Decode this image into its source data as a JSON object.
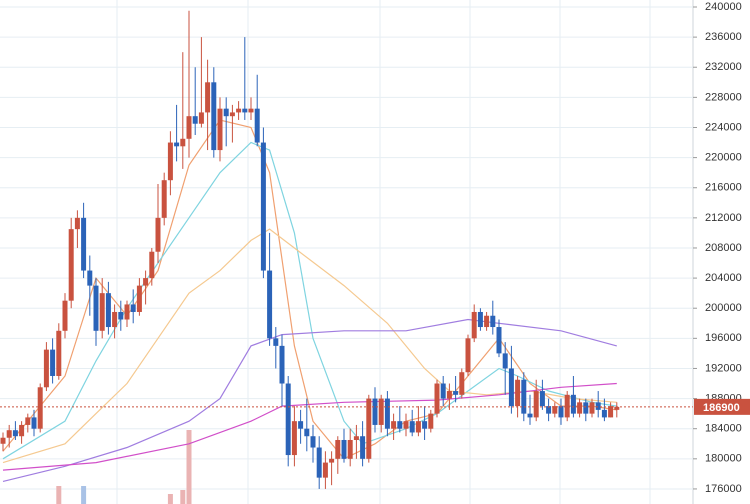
{
  "chart_data": {
    "type": "candlestick",
    "up_color": "#c9523f",
    "down_color": "#2b63b8",
    "ylim": [
      174000,
      240000
    ],
    "yticks": [
      176000,
      180000,
      184000,
      188000,
      192000,
      196000,
      200000,
      204000,
      208000,
      212000,
      216000,
      220000,
      224000,
      228000,
      232000,
      236000,
      240000
    ],
    "grid": true,
    "ohlc": [
      [
        182000,
        183500,
        181000,
        182800
      ],
      [
        182800,
        184500,
        181500,
        183800
      ],
      [
        183800,
        185000,
        182500,
        183000
      ],
      [
        183000,
        185000,
        182000,
        184500
      ],
      [
        184500,
        186000,
        183500,
        185500
      ],
      [
        185500,
        186500,
        183000,
        184000
      ],
      [
        184000,
        190000,
        183500,
        189500
      ],
      [
        189500,
        195500,
        189000,
        194500
      ],
      [
        194500,
        196000,
        190000,
        191000
      ],
      [
        191000,
        198000,
        190500,
        197000
      ],
      [
        197000,
        202000,
        196000,
        201000
      ],
      [
        201000,
        212000,
        200000,
        210500
      ],
      [
        210500,
        213000,
        208000,
        212000
      ],
      [
        212000,
        214000,
        204000,
        205000
      ],
      [
        205000,
        207000,
        199000,
        203000
      ],
      [
        203000,
        204000,
        195000,
        197000
      ],
      [
        197000,
        204000,
        196000,
        202000
      ],
      [
        202000,
        203500,
        196500,
        197500
      ],
      [
        197500,
        200500,
        196000,
        199500
      ],
      [
        199500,
        201000,
        197000,
        198500
      ],
      [
        198500,
        201000,
        197500,
        200500
      ],
      [
        200500,
        202500,
        198000,
        199500
      ],
      [
        199500,
        204000,
        199000,
        203000
      ],
      [
        203000,
        205000,
        200500,
        204000
      ],
      [
        204000,
        208000,
        203000,
        207500
      ],
      [
        207500,
        216500,
        206000,
        212000
      ],
      [
        212000,
        218000,
        211000,
        217000
      ],
      [
        217000,
        223500,
        215000,
        222000
      ],
      [
        222000,
        227000,
        219500,
        221500
      ],
      [
        221500,
        234000,
        218500,
        222500
      ],
      [
        222500,
        239500,
        220000,
        225500
      ],
      [
        225500,
        232000,
        223000,
        224500
      ],
      [
        224500,
        236000,
        224000,
        226000
      ],
      [
        226000,
        233000,
        221000,
        230000
      ],
      [
        230000,
        232000,
        220000,
        221000
      ],
      [
        221000,
        228000,
        219500,
        226500
      ],
      [
        226500,
        228000,
        221500,
        225500
      ],
      [
        225500,
        227000,
        222000,
        226000
      ],
      [
        226000,
        227500,
        225000,
        226500
      ],
      [
        226500,
        236000,
        225000,
        226000
      ],
      [
        226000,
        228000,
        225000,
        226500
      ],
      [
        226500,
        231000,
        221500,
        222000
      ],
      [
        222000,
        224000,
        204000,
        205000
      ],
      [
        205000,
        210000,
        195000,
        196000
      ],
      [
        196000,
        197500,
        192000,
        195000
      ],
      [
        195000,
        196500,
        187000,
        190000
      ],
      [
        190000,
        191000,
        179000,
        180500
      ],
      [
        180500,
        187000,
        179000,
        185000
      ],
      [
        185000,
        186500,
        182000,
        184000
      ],
      [
        184000,
        188000,
        181000,
        183000
      ],
      [
        183000,
        184500,
        179500,
        181500
      ],
      [
        181500,
        183000,
        176000,
        177500
      ],
      [
        177500,
        181000,
        176000,
        179500
      ],
      [
        179500,
        181000,
        176500,
        180000
      ],
      [
        180000,
        183000,
        178000,
        182500
      ],
      [
        182500,
        184000,
        179500,
        180000
      ],
      [
        180000,
        184000,
        179000,
        182500
      ],
      [
        182500,
        184500,
        180000,
        183000
      ],
      [
        183000,
        185000,
        179000,
        180000
      ],
      [
        180000,
        188500,
        179500,
        188000
      ],
      [
        188000,
        189500,
        183500,
        184500
      ],
      [
        184500,
        188500,
        183500,
        188000
      ],
      [
        188000,
        189000,
        183000,
        184000
      ],
      [
        184000,
        186000,
        182500,
        185000
      ],
      [
        185000,
        187000,
        183500,
        184000
      ],
      [
        184000,
        186000,
        183000,
        185000
      ],
      [
        185000,
        186500,
        183000,
        183500
      ],
      [
        183500,
        187000,
        183000,
        185000
      ],
      [
        185000,
        187000,
        182500,
        184000
      ],
      [
        184000,
        186500,
        183500,
        186000
      ],
      [
        186000,
        190500,
        185500,
        190000
      ],
      [
        190000,
        191000,
        187000,
        188000
      ],
      [
        188000,
        190000,
        186500,
        189000
      ],
      [
        189000,
        191000,
        187500,
        188500
      ],
      [
        188500,
        192000,
        188000,
        191500
      ],
      [
        191500,
        196500,
        191000,
        196000
      ],
      [
        196000,
        200500,
        195500,
        199500
      ],
      [
        199500,
        200000,
        197000,
        197500
      ],
      [
        197500,
        199500,
        197000,
        199000
      ],
      [
        199000,
        201000,
        196500,
        197500
      ],
      [
        197500,
        198500,
        193500,
        194000
      ],
      [
        194000,
        195500,
        188500,
        192000
      ],
      [
        192000,
        195000,
        186000,
        187000
      ],
      [
        187000,
        191000,
        185500,
        190500
      ],
      [
        190500,
        191500,
        185000,
        186000
      ],
      [
        186000,
        188500,
        184500,
        185500
      ],
      [
        185500,
        190500,
        185000,
        189000
      ],
      [
        189000,
        190500,
        186500,
        187000
      ],
      [
        187000,
        188000,
        185000,
        186000
      ],
      [
        186000,
        187500,
        185500,
        187000
      ],
      [
        187000,
        188000,
        184500,
        185500
      ],
      [
        185500,
        189000,
        185000,
        188500
      ],
      [
        188500,
        191000,
        185500,
        186000
      ],
      [
        186000,
        188000,
        185500,
        187500
      ],
      [
        187500,
        188000,
        185000,
        186000
      ],
      [
        186000,
        188000,
        185500,
        187500
      ],
      [
        187500,
        189000,
        185500,
        186500
      ],
      [
        186500,
        188000,
        185000,
        185500
      ],
      [
        185500,
        187500,
        185500,
        187000
      ],
      [
        186500,
        187500,
        185500,
        186900
      ]
    ],
    "volume": [
      null,
      null,
      null,
      null,
      null,
      null,
      null,
      null,
      null,
      18,
      null,
      null,
      null,
      18,
      null,
      null,
      null,
      null,
      null,
      null,
      null,
      null,
      null,
      null,
      null,
      null,
      null,
      10,
      null,
      14,
      74,
      null,
      null,
      null,
      null,
      null,
      null,
      null,
      null,
      null,
      null,
      null,
      null,
      null,
      null,
      null,
      null,
      null,
      null,
      null,
      null,
      null,
      null,
      null,
      null,
      null,
      null,
      null,
      null,
      null,
      null,
      null,
      null,
      null,
      null,
      null,
      null,
      null,
      null,
      null,
      null,
      null,
      null,
      null,
      null,
      null,
      null,
      null,
      null,
      null,
      null,
      null,
      null,
      null,
      null,
      null,
      null,
      null,
      null,
      null,
      null,
      null,
      null,
      null,
      null,
      null,
      null,
      null,
      null,
      null
    ],
    "volume_colors": {
      "up": "#eab3b3",
      "down": "#a9c2e6"
    },
    "series": [
      {
        "color": "#f0a070",
        "x": [
          0,
          10,
          15,
          20,
          25,
          30,
          35,
          40,
          43,
          47,
          50,
          55,
          60,
          65,
          70,
          75,
          80,
          85,
          90,
          95,
          99
        ],
        "values": [
          181000,
          191000,
          204000,
          199000,
          205000,
          219000,
          225000,
          224000,
          218000,
          195000,
          185000,
          180000,
          182000,
          185000,
          186000,
          191000,
          196000,
          190000,
          187000,
          187000,
          186500
        ]
      },
      {
        "color": "#7fd4e0",
        "x": [
          0,
          10,
          15,
          20,
          25,
          30,
          35,
          40,
          43,
          47,
          50,
          55,
          58,
          65,
          70,
          75,
          80,
          83,
          88,
          95,
          99
        ],
        "values": [
          180000,
          185000,
          193000,
          200000,
          206000,
          212000,
          218000,
          222000,
          221000,
          210000,
          196000,
          185000,
          182000,
          184000,
          186000,
          189000,
          192000,
          191000,
          189000,
          187500,
          187000
        ]
      },
      {
        "color": "#f5c990",
        "x": [
          0,
          10,
          15,
          20,
          25,
          30,
          35,
          40,
          43,
          47,
          55,
          62,
          68,
          72,
          78,
          85,
          92,
          99
        ],
        "values": [
          179500,
          182000,
          186000,
          190000,
          196000,
          202000,
          205000,
          209000,
          210500,
          208000,
          203000,
          198000,
          192000,
          189000,
          188500,
          189000,
          188000,
          187500
        ]
      },
      {
        "color": "#a07de0",
        "x": [
          0,
          10,
          20,
          30,
          35,
          40,
          45,
          55,
          65,
          75,
          80,
          90,
          99
        ],
        "values": [
          177000,
          179000,
          181500,
          185000,
          188000,
          195000,
          196500,
          197000,
          197000,
          198500,
          198000,
          197000,
          195000
        ]
      },
      {
        "color": "#d14fc9",
        "x": [
          0,
          15,
          30,
          40,
          45,
          55,
          70,
          80,
          90,
          99
        ],
        "values": [
          178500,
          179500,
          182000,
          185000,
          187000,
          187500,
          187800,
          188500,
          189500,
          190000
        ]
      }
    ],
    "price_line_color": "#c9523f"
  }
}
